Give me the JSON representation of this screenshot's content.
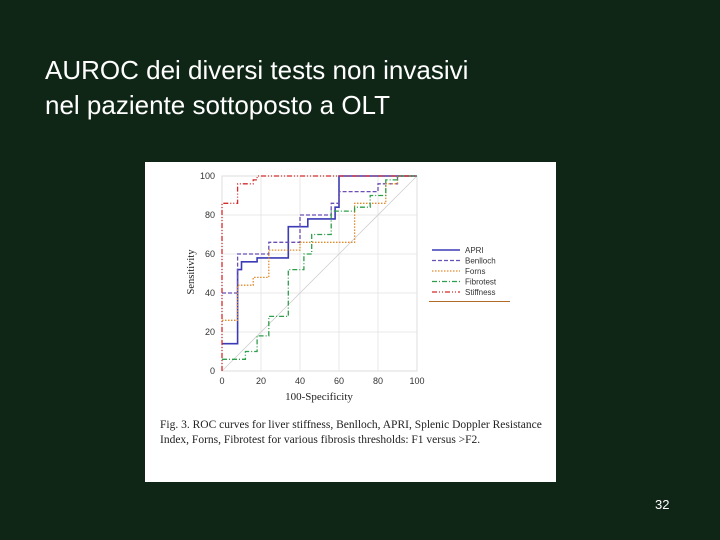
{
  "slide": {
    "title_line1": "AUROC dei diversi tests non invasivi",
    "title_line2": "nel paziente sottoposto a OLT",
    "page_number": "32"
  },
  "figure": {
    "caption_label": "Fig. 3.",
    "caption_text": "ROC curves for liver stiffness, Benlloch, APRI, Splenic Doppler Resistance Index, Forns, Fibrotest for various fibrosis thresholds: F1 versus >F2."
  },
  "chart_data": {
    "type": "line",
    "xlabel": "100-Specificity",
    "ylabel": "Sensitivity",
    "xlim": [
      0,
      100
    ],
    "ylim": [
      0,
      100
    ],
    "xticks": [
      "0",
      "20",
      "40",
      "60",
      "80",
      "100"
    ],
    "yticks": [
      "0",
      "20",
      "40",
      "60",
      "80",
      "100"
    ],
    "grid": true,
    "diagonal_reference": true,
    "legend_position": "right",
    "colors": {
      "APRI": "#3b3bb5",
      "Benlloch": "#6a4fb5",
      "Forns": "#e08a2e",
      "Fibrotest": "#2e9e4a",
      "Stiffness": "#d42b2b"
    },
    "series": [
      {
        "name": "APRI",
        "style": "solid",
        "points": [
          [
            0,
            14
          ],
          [
            8,
            14
          ],
          [
            8,
            52
          ],
          [
            10,
            52
          ],
          [
            10,
            56
          ],
          [
            18,
            56
          ],
          [
            18,
            58
          ],
          [
            34,
            58
          ],
          [
            34,
            74
          ],
          [
            44,
            74
          ],
          [
            44,
            78
          ],
          [
            58,
            78
          ],
          [
            58,
            84
          ],
          [
            60,
            84
          ],
          [
            60,
            100
          ],
          [
            100,
            100
          ]
        ]
      },
      {
        "name": "Benlloch",
        "style": "dashed",
        "points": [
          [
            0,
            40
          ],
          [
            8,
            40
          ],
          [
            8,
            60
          ],
          [
            24,
            60
          ],
          [
            24,
            66
          ],
          [
            40,
            66
          ],
          [
            40,
            80
          ],
          [
            56,
            80
          ],
          [
            56,
            86
          ],
          [
            60,
            86
          ],
          [
            60,
            92
          ],
          [
            80,
            92
          ],
          [
            80,
            96
          ],
          [
            90,
            96
          ],
          [
            90,
            100
          ],
          [
            100,
            100
          ]
        ]
      },
      {
        "name": "Forns",
        "style": "dotted",
        "points": [
          [
            0,
            26
          ],
          [
            8,
            26
          ],
          [
            8,
            44
          ],
          [
            16,
            44
          ],
          [
            16,
            48
          ],
          [
            24,
            48
          ],
          [
            24,
            62
          ],
          [
            40,
            62
          ],
          [
            40,
            66
          ],
          [
            68,
            66
          ],
          [
            68,
            86
          ],
          [
            84,
            86
          ],
          [
            84,
            96
          ],
          [
            90,
            96
          ],
          [
            90,
            100
          ],
          [
            100,
            100
          ]
        ]
      },
      {
        "name": "Fibrotest",
        "style": "dashdot",
        "points": [
          [
            0,
            6
          ],
          [
            12,
            6
          ],
          [
            12,
            10
          ],
          [
            18,
            10
          ],
          [
            18,
            18
          ],
          [
            24,
            18
          ],
          [
            24,
            28
          ],
          [
            34,
            28
          ],
          [
            34,
            52
          ],
          [
            42,
            52
          ],
          [
            42,
            60
          ],
          [
            46,
            60
          ],
          [
            46,
            70
          ],
          [
            56,
            70
          ],
          [
            56,
            82
          ],
          [
            68,
            82
          ],
          [
            68,
            84
          ],
          [
            76,
            84
          ],
          [
            76,
            90
          ],
          [
            84,
            90
          ],
          [
            84,
            98
          ],
          [
            90,
            98
          ],
          [
            90,
            100
          ],
          [
            100,
            100
          ]
        ]
      },
      {
        "name": "Stiffness",
        "style": "dashdotdot",
        "points": [
          [
            0,
            0
          ],
          [
            0,
            86
          ],
          [
            8,
            86
          ],
          [
            8,
            96
          ],
          [
            16,
            96
          ],
          [
            16,
            98
          ],
          [
            18,
            98
          ],
          [
            18,
            100
          ],
          [
            100,
            100
          ]
        ]
      }
    ]
  }
}
